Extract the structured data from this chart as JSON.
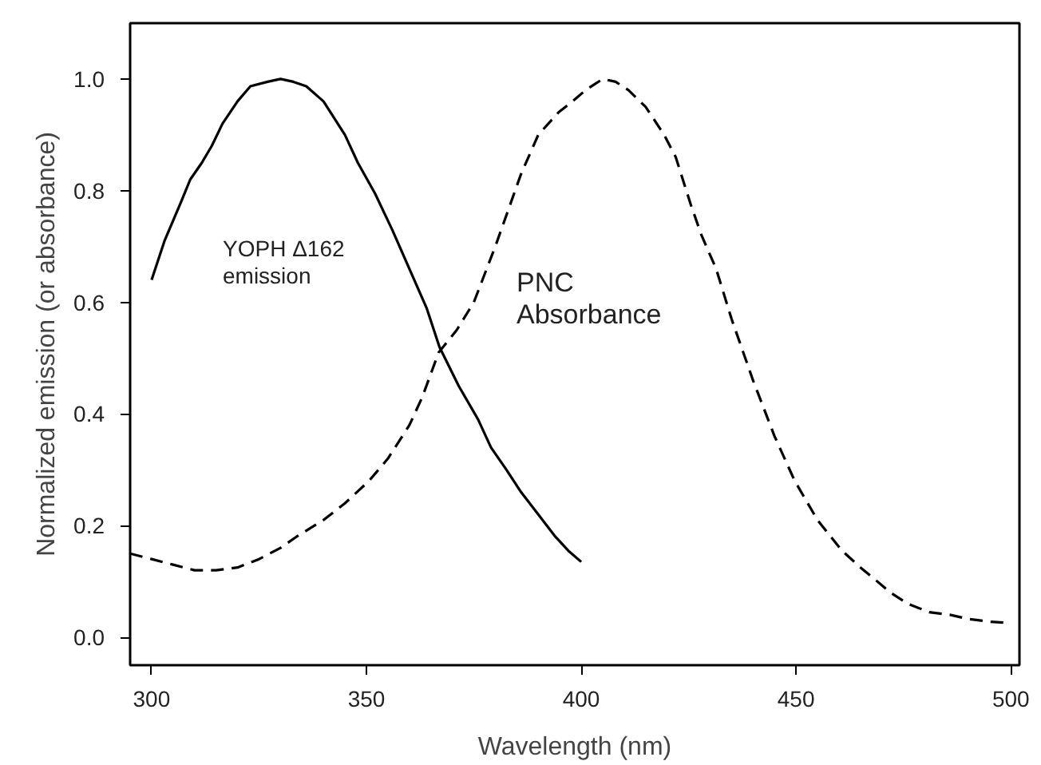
{
  "chart_data": {
    "type": "line",
    "xlabel": "Wavelength (nm)",
    "ylabel": "Normalized emission (or absorbance)",
    "xlim": [
      295,
      502
    ],
    "ylim": [
      -0.05,
      1.1
    ],
    "xticks": [
      300,
      350,
      400,
      450,
      500
    ],
    "yticks": [
      {
        "value": 0,
        "label": "0.0"
      },
      0.2,
      0.4,
      0.6,
      0.8,
      {
        "value": 1,
        "label": "1.0"
      }
    ],
    "grid": false,
    "series": [
      {
        "color": "#000000",
        "line_style": "solid",
        "x": [
          300,
          303,
          306.6,
          309,
          311.7,
          314,
          316.5,
          320,
          323,
          327,
          330,
          333,
          336,
          340,
          345,
          348,
          352,
          356,
          360,
          364,
          367,
          371.5,
          376,
          379,
          382.6,
          386,
          390,
          394,
          397,
          400
        ],
        "values": [
          0.64,
          0.71,
          0.775,
          0.82,
          0.85,
          0.88,
          0.92,
          0.96,
          0.987,
          0.995,
          1.0,
          0.995,
          0.987,
          0.96,
          0.9,
          0.85,
          0.795,
          0.73,
          0.66,
          0.59,
          0.52,
          0.45,
          0.39,
          0.34,
          0.3,
          0.26,
          0.22,
          0.18,
          0.155,
          0.135
        ]
      },
      {
        "color": "#000000",
        "line_style": "dashed",
        "x": [
          295,
          300,
          305,
          310,
          315,
          320,
          325,
          330,
          333.7,
          340,
          345,
          350.6,
          355,
          360,
          363,
          366.8,
          371,
          375,
          380,
          386,
          390,
          394.7,
          398,
          401,
          403,
          405,
          408,
          411,
          415,
          419.3,
          422,
          425.5,
          428,
          431.4,
          435,
          440,
          445,
          449.7,
          455,
          460.7,
          465,
          468,
          472,
          476,
          481,
          486,
          490,
          495,
          499
        ],
        "values": [
          0.15,
          0.14,
          0.13,
          0.12,
          0.12,
          0.125,
          0.14,
          0.16,
          0.18,
          0.21,
          0.24,
          0.28,
          0.32,
          0.38,
          0.43,
          0.51,
          0.55,
          0.6,
          0.7,
          0.83,
          0.9,
          0.94,
          0.96,
          0.98,
          0.99,
          1.0,
          0.995,
          0.98,
          0.95,
          0.9,
          0.86,
          0.775,
          0.72,
          0.66,
          0.57,
          0.46,
          0.36,
          0.28,
          0.21,
          0.155,
          0.125,
          0.106,
          0.08,
          0.06,
          0.045,
          0.04,
          0.033,
          0.028,
          0.026
        ]
      }
    ],
    "annotations": [
      "YOPH Δ162\nemission",
      "PNC\nAbsorbance"
    ]
  }
}
